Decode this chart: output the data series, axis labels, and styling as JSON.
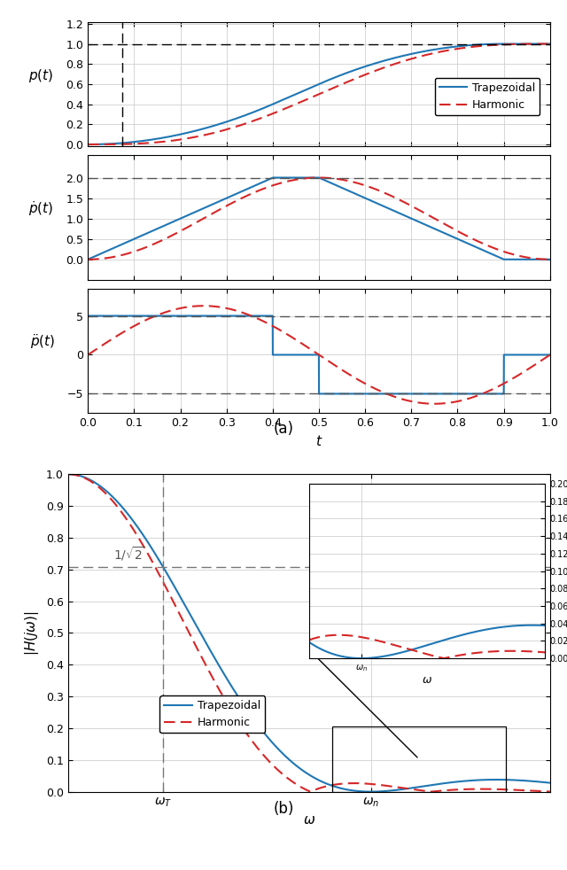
{
  "blue_color": "#1f77b4",
  "red_color": "#d62728",
  "grid_color": "#d0d0d0",
  "trap_label": "Trapezoidal",
  "harm_label": "Harmonic",
  "fig_label_a": "(a)",
  "fig_label_b": "(b)",
  "ta": 0.4,
  "tc": 0.1,
  "td": 0.4,
  "a_max": 5.0,
  "v_max": 2.0,
  "inv_sqrt2": 0.7071067811865476,
  "omega_max": 25.0
}
